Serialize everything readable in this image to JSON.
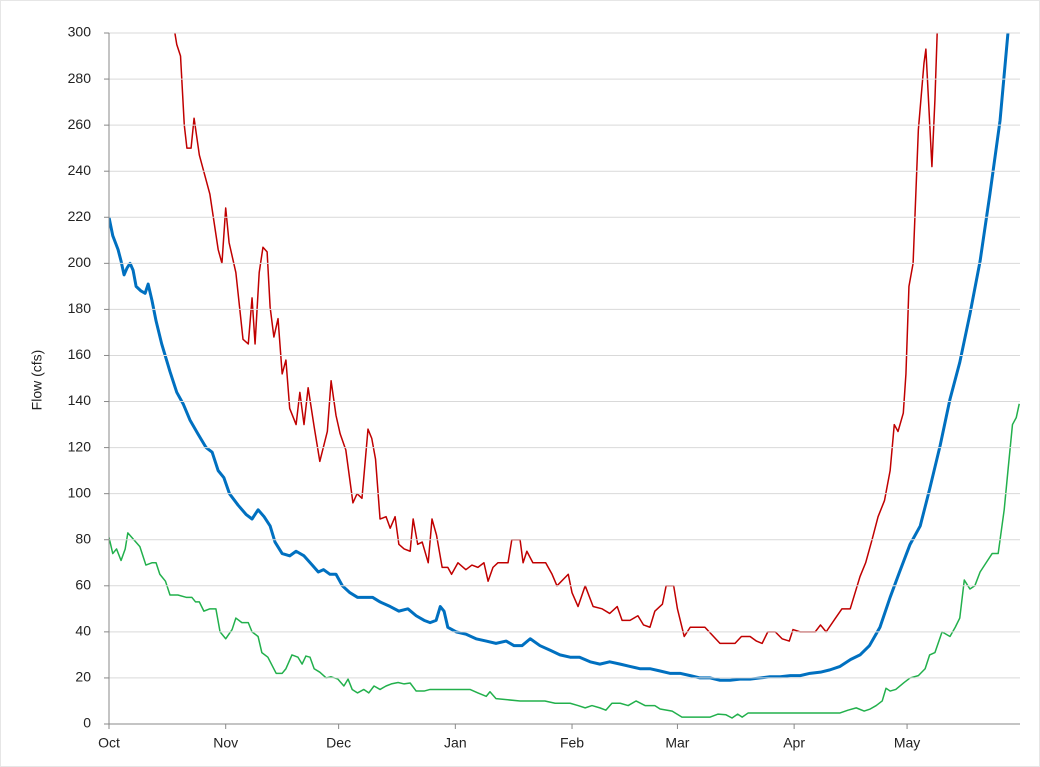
{
  "chart_data": {
    "type": "line",
    "y_label": "Flow (cfs)",
    "xlim": [
      0,
      242
    ],
    "xticks": [
      {
        "value": 0,
        "label": "Oct"
      },
      {
        "value": 31,
        "label": "Nov"
      },
      {
        "value": 61,
        "label": "Dec"
      },
      {
        "value": 92,
        "label": "Jan"
      },
      {
        "value": 123,
        "label": "Feb"
      },
      {
        "value": 151,
        "label": "Mar"
      },
      {
        "value": 182,
        "label": "Apr"
      },
      {
        "value": 212,
        "label": "May"
      }
    ],
    "ylim": [
      0,
      300
    ],
    "yticks": [
      0,
      20,
      40,
      60,
      80,
      100,
      120,
      140,
      160,
      180,
      200,
      220,
      240,
      260,
      280,
      300
    ],
    "grid": true,
    "series": [
      {
        "color": "#c00000",
        "width": 1.5,
        "x": [
          17,
          17.5,
          18,
          19,
          20,
          20.7,
          21.8,
          22.6,
          24,
          26.8,
          29,
          30,
          31,
          31.9,
          33.7,
          35.6,
          37,
          38,
          38.8,
          39.9,
          40.9,
          42,
          42.8,
          43.8,
          44.9,
          46,
          47,
          48,
          49.7,
          50.7,
          51.8,
          52.9,
          54.5,
          56,
          58,
          59,
          60.3,
          61.4,
          62.9,
          64.8,
          65.9,
          67.2,
          68.8,
          69.8,
          70.8,
          72,
          73.6,
          74.7,
          76,
          77,
          78.4,
          80,
          80.8,
          82,
          83.2,
          84.8,
          85.8,
          87,
          88.5,
          90,
          91,
          92.7,
          94.8,
          96.4,
          98,
          99.6,
          100.7,
          102,
          103.3,
          106,
          107,
          109.2,
          110,
          111,
          112.6,
          116,
          117.7,
          119,
          122,
          123,
          124.6,
          126.5,
          128.6,
          131,
          133,
          135,
          136.3,
          138.4,
          140.5,
          142,
          143.7,
          145,
          147,
          148,
          150,
          151,
          152.8,
          154.4,
          158.3,
          162.3,
          166.3,
          168,
          170.3,
          172,
          173.5,
          175,
          177,
          178.8,
          180.7,
          181.7,
          183.6,
          187.6,
          189,
          190.5,
          193,
          194.7,
          196.9,
          199.5,
          201,
          202.7,
          204.3,
          206,
          207.5,
          208.6,
          209.6,
          211,
          211.7,
          212.5,
          213.6,
          215,
          216.5,
          217,
          218.6,
          219.4,
          220,
          220.2
        ],
        "values": [
          310,
          300,
          295,
          290,
          260,
          250,
          250,
          263,
          247,
          230,
          206,
          200,
          224,
          209,
          196,
          167,
          165,
          185,
          165,
          196,
          207,
          205,
          181,
          168,
          176,
          152,
          158,
          137,
          130,
          144,
          130,
          146,
          129,
          114,
          127,
          149,
          134,
          126,
          119,
          96,
          100,
          98,
          128,
          124,
          115,
          89,
          90,
          85,
          90,
          78,
          76,
          75,
          89,
          78,
          79,
          70,
          89,
          82,
          68,
          68,
          65,
          70,
          67,
          69,
          68,
          70,
          62,
          68,
          70,
          70,
          80,
          80,
          70,
          75,
          70,
          70,
          65,
          60,
          65,
          57,
          51,
          60,
          51,
          50,
          48,
          51,
          45,
          45,
          47,
          43,
          42,
          49,
          52,
          60,
          60,
          50,
          38,
          42,
          42,
          35,
          35,
          38,
          38,
          36,
          35,
          40,
          40,
          37,
          36,
          41,
          40,
          40,
          43,
          40,
          46,
          50,
          50,
          64,
          70,
          80,
          90,
          97,
          110,
          130,
          127,
          135,
          152,
          190,
          200,
          258,
          287,
          293,
          242,
          271,
          300,
          315
        ]
      },
      {
        "color": "#0070c0",
        "width": 3,
        "x": [
          0,
          1,
          2.4,
          3.2,
          4,
          4.8,
          5.6,
          6.4,
          7.2,
          8.5,
          9.6,
          10.4,
          11.4,
          12.5,
          14,
          16.2,
          18,
          19.7,
          21.5,
          23.6,
          25.8,
          27.4,
          29,
          30.5,
          32,
          34.3,
          36.4,
          38,
          39.6,
          41.2,
          42.8,
          44.1,
          46,
          48,
          49.7,
          51.8,
          54,
          55.6,
          57,
          58.7,
          60.3,
          62,
          64,
          66,
          68,
          70,
          72,
          74.7,
          77,
          79.4,
          81.6,
          83.7,
          85.3,
          86.9,
          88,
          89,
          90,
          92.2,
          94.8,
          97.5,
          100.2,
          102.8,
          105.5,
          107.6,
          109.7,
          111.9,
          114.5,
          117.2,
          119.8,
          122.5,
          125,
          127.8,
          130.4,
          133,
          135.8,
          138.4,
          141,
          143.7,
          146.4,
          149,
          151.7,
          154.4,
          157,
          159.7,
          162.3,
          165,
          167.6,
          170.3,
          173,
          175.6,
          178.3,
          181,
          183.6,
          186.2,
          189,
          191.5,
          194.2,
          197,
          199.5,
          202,
          204.8,
          207.5,
          210,
          212.8,
          215.5,
          218,
          220.8,
          223.4,
          226,
          228.7,
          231.4,
          234,
          236.7,
          238.8,
          239.4
        ],
        "values": [
          220,
          212,
          206,
          201,
          195,
          198,
          200,
          197,
          190,
          188,
          187,
          191,
          184,
          175,
          165,
          153,
          144,
          139,
          132,
          126,
          120,
          118,
          110,
          107,
          100,
          95,
          91,
          89,
          93,
          90,
          86,
          79,
          74,
          73,
          75,
          73,
          69,
          66,
          67,
          65,
          65,
          60,
          57,
          55,
          55,
          55,
          53,
          51,
          49,
          50,
          47,
          45,
          44,
          45,
          51,
          49,
          42,
          40,
          39,
          37,
          36,
          35,
          36,
          34,
          34,
          37,
          34,
          32,
          30,
          29,
          29,
          27,
          26,
          27,
          26,
          25,
          24,
          24,
          23,
          22,
          22,
          21,
          20,
          20,
          19,
          19,
          19.5,
          19.5,
          20,
          20.5,
          20.5,
          21,
          21,
          22,
          22.5,
          23.5,
          25,
          28,
          30,
          34,
          42,
          55,
          66,
          78,
          86,
          102,
          121,
          141,
          157,
          178,
          201,
          230,
          262,
          300,
          306
        ]
      },
      {
        "color": "#22b04c",
        "width": 1.5,
        "x": [
          0,
          1,
          2,
          3.2,
          4.3,
          5,
          6.6,
          8.2,
          9.8,
          11.4,
          12.5,
          13.5,
          15,
          16.2,
          18.3,
          20.5,
          22,
          23,
          24,
          25.2,
          26.8,
          28.4,
          29.5,
          31,
          32.7,
          33.7,
          35.3,
          37,
          38,
          39.6,
          40.6,
          42.2,
          44.4,
          46,
          47,
          48.6,
          50.2,
          51.3,
          52.3,
          53.4,
          54.5,
          56,
          57.7,
          59,
          60.8,
          62.4,
          63.5,
          64.6,
          66,
          67.7,
          69,
          70.4,
          72,
          73.6,
          75,
          76.8,
          78.4,
          80,
          81.6,
          83.7,
          85.3,
          90.6,
          95.9,
          98,
          100.2,
          101.2,
          102.8,
          109.2,
          115.8,
          118.5,
          122.5,
          124.6,
          126.5,
          128.3,
          130.4,
          132,
          133.6,
          135.8,
          137.9,
          140,
          142.4,
          145,
          146.4,
          149.6,
          152.2,
          157,
          159.7,
          161.8,
          163.9,
          165.5,
          167,
          168.2,
          169.8,
          173,
          178.3,
          183.6,
          189,
          194.2,
          196.3,
          198.5,
          200.6,
          202.2,
          203.8,
          205.4,
          206.4,
          207.5,
          209,
          211.2,
          212.8,
          215,
          216.8,
          218,
          219.4,
          221.3,
          223.4,
          224.8,
          226,
          227.2,
          228.7,
          230,
          231.4,
          233,
          234.6,
          236.2,
          237.8,
          238.8,
          240,
          241,
          241.8
        ],
        "values": [
          81,
          74,
          76,
          71,
          76,
          83,
          80,
          77,
          69,
          70,
          70,
          65,
          62,
          56,
          56,
          55,
          55,
          53,
          53,
          49,
          50,
          50,
          40,
          37,
          41,
          46,
          44,
          44,
          40,
          38,
          31,
          29,
          22,
          22,
          24,
          30,
          29,
          26,
          29.5,
          29,
          24,
          22.5,
          20,
          20.5,
          19.5,
          16.5,
          19.5,
          15,
          13.5,
          15,
          13.5,
          16.5,
          15,
          16.5,
          17.4,
          18,
          17.4,
          17.8,
          14.3,
          14.3,
          15,
          15,
          15,
          13.5,
          12,
          14,
          11,
          10,
          10,
          9,
          9,
          8,
          7,
          8,
          7,
          6,
          9,
          9,
          8,
          10,
          8,
          8,
          6.5,
          5.6,
          3,
          3,
          3,
          4.3,
          4,
          2.6,
          4.3,
          3,
          4.8,
          4.8,
          4.8,
          4.8,
          4.8,
          4.8,
          6,
          7,
          5.6,
          6.5,
          8,
          10,
          15.5,
          14.3,
          15,
          18,
          20,
          21,
          24,
          30,
          31,
          40,
          38,
          42,
          46,
          62.5,
          58.6,
          60,
          66,
          70,
          74,
          74,
          93,
          110,
          130,
          133,
          139
        ]
      }
    ]
  }
}
